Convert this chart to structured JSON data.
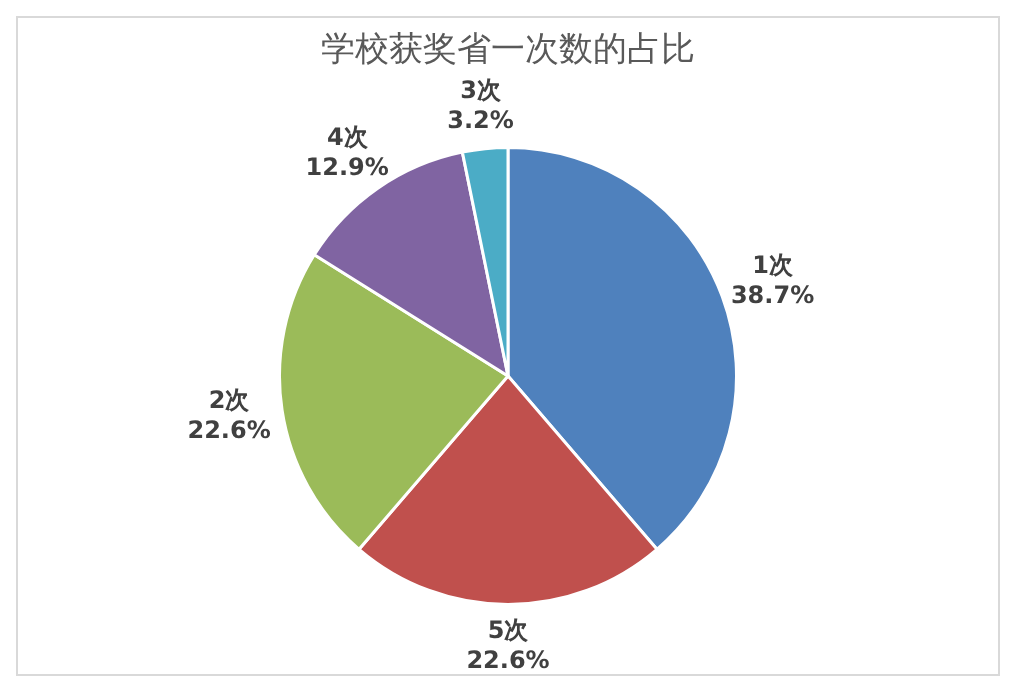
{
  "chart_data": {
    "type": "pie",
    "title": "学校获奖省一次数的占比",
    "categories": [
      "1次",
      "5次",
      "2次",
      "4次",
      "3次"
    ],
    "values": [
      38.7,
      22.6,
      22.6,
      12.9,
      3.2
    ],
    "colors": [
      "#4f81bd",
      "#c0504d",
      "#9bbb59",
      "#8064a2",
      "#4bacc6"
    ],
    "value_labels": [
      "38.7%",
      "22.6%",
      "22.6%",
      "12.9%",
      "3.2%"
    ],
    "legend": false
  }
}
